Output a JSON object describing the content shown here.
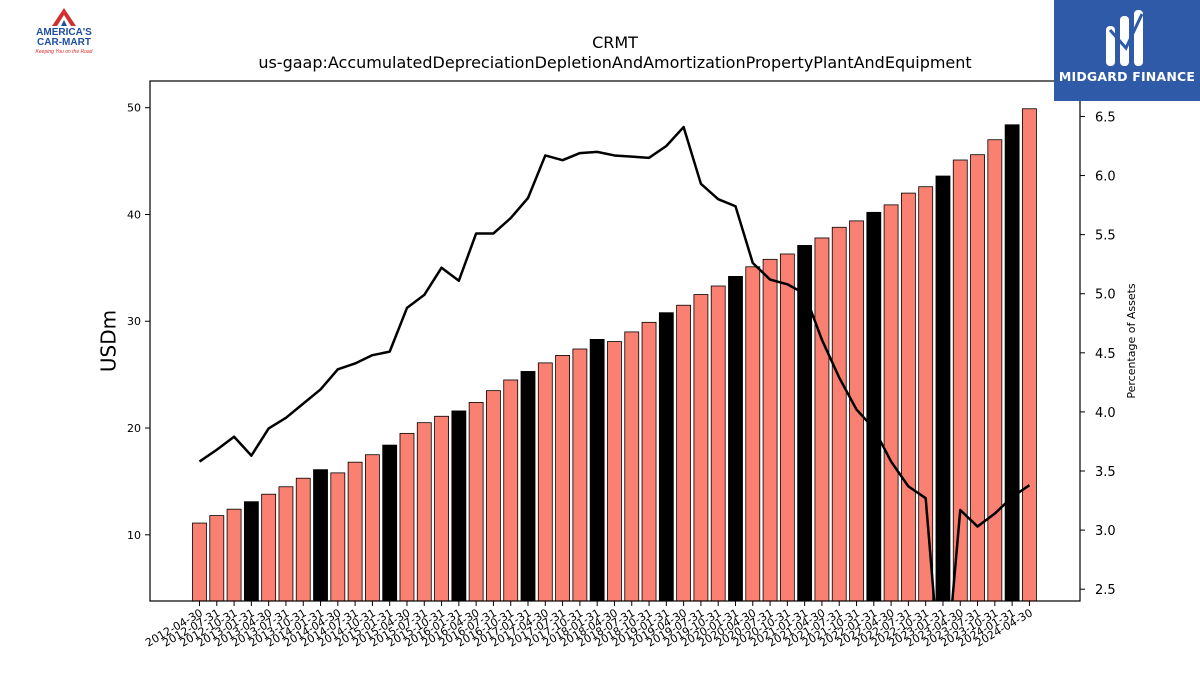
{
  "branding": {
    "left_logo_line1": "AMERICA'S",
    "left_logo_line2": "CAR-MART",
    "left_logo_tagline": "Keeping You on the Road",
    "right_logo_name": "MIDGARD FINANCE"
  },
  "colors": {
    "bar_default": "#fa8072",
    "bar_highlight": "#000000",
    "line": "#000000",
    "right_logo_bg": "#2f5aa8",
    "left_logo_red": "#d32f2f",
    "left_logo_blue": "#1f4fa0"
  },
  "chart_data": {
    "type": "bar",
    "title": "CRMT",
    "subtitle": "us-gaap:AccumulatedDepreciationDepletionAndAmortizationPropertyPlantAndEquipment",
    "ylabel": "USDm",
    "y2label": "Percentage of Assets",
    "ylim": [
      3.8,
      52.5
    ],
    "y2lim": [
      2.4,
      6.8
    ],
    "yticks": [
      10,
      20,
      30,
      40,
      50
    ],
    "y2ticks": [
      "2.5",
      "3.0",
      "3.5",
      "4.0",
      "4.5",
      "5.0",
      "5.5",
      "6.0",
      "6.5"
    ],
    "categories": [
      "2012-04-30",
      "2012-07-31",
      "2012-10-31",
      "2013-01-31",
      "2013-04-30",
      "2013-07-31",
      "2013-10-31",
      "2014-01-31",
      "2014-04-30",
      "2014-07-31",
      "2014-10-31",
      "2015-01-31",
      "2015-04-30",
      "2015-07-31",
      "2015-10-31",
      "2016-01-31",
      "2016-04-30",
      "2016-07-31",
      "2016-10-31",
      "2017-01-31",
      "2017-04-30",
      "2017-07-31",
      "2017-10-31",
      "2018-01-31",
      "2018-04-30",
      "2018-07-31",
      "2018-10-31",
      "2019-01-31",
      "2019-04-30",
      "2019-07-31",
      "2019-10-31",
      "2020-01-31",
      "2020-04-30",
      "2020-07-31",
      "2020-10-31",
      "2021-01-31",
      "2021-04-30",
      "2021-07-31",
      "2021-10-31",
      "2022-01-31",
      "2022-04-30",
      "2022-07-31",
      "2022-10-31",
      "2023-01-31",
      "2023-04-30",
      "2023-07-31",
      "2023-10-31",
      "2024-01-31",
      "2024-04-30"
    ],
    "highlight_indices": [
      3,
      7,
      11,
      15,
      19,
      23,
      27,
      31,
      35,
      39,
      43,
      47
    ],
    "series": [
      {
        "kind": "bar",
        "axis": "left",
        "values": [
          11.1,
          11.8,
          12.4,
          13.1,
          13.8,
          14.5,
          15.3,
          16.1,
          15.8,
          16.8,
          17.5,
          18.4,
          19.5,
          20.5,
          21.1,
          21.6,
          22.4,
          23.5,
          24.5,
          25.3,
          26.1,
          26.8,
          27.4,
          28.3,
          28.1,
          29.0,
          29.9,
          30.8,
          31.5,
          32.5,
          33.3,
          34.2,
          35.1,
          35.8,
          36.3,
          37.1,
          37.8,
          38.8,
          39.4,
          40.2,
          40.9,
          42.0,
          42.6,
          43.6,
          45.1,
          45.6,
          47.0,
          48.4,
          49.9
        ]
      },
      {
        "kind": "line",
        "axis": "right",
        "values": [
          3.58,
          3.68,
          3.79,
          3.63,
          3.86,
          3.95,
          4.07,
          4.19,
          4.36,
          4.41,
          4.48,
          4.51,
          4.88,
          4.99,
          5.22,
          5.11,
          5.51,
          5.51,
          5.64,
          5.81,
          6.17,
          6.13,
          6.19,
          6.2,
          6.17,
          6.16,
          6.15,
          6.25,
          6.41,
          5.93,
          5.8,
          5.74,
          5.26,
          5.12,
          5.08,
          5.0,
          4.61,
          4.29,
          4.02,
          3.86,
          3.58,
          3.37,
          3.27,
          1.5,
          3.17,
          3.03,
          3.14,
          3.28,
          3.38
        ]
      }
    ]
  }
}
